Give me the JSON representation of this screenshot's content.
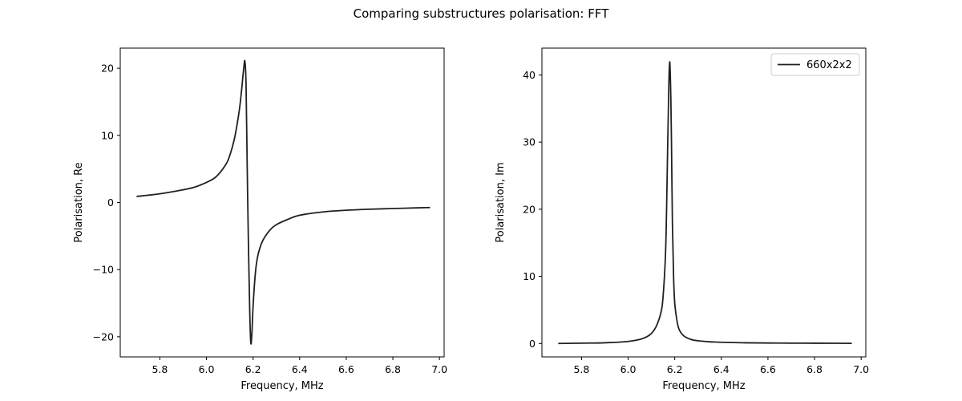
{
  "figure": {
    "title": "Comparing substructures polarisation: FFT"
  },
  "chart_data": [
    {
      "type": "line",
      "title": "",
      "xlabel": "Frequency, MHz",
      "ylabel": "Polarisation, Re",
      "xlim": [
        5.63,
        7.02
      ],
      "ylim": [
        -23.0,
        23.0
      ],
      "xticks": [
        5.8,
        6.0,
        6.2,
        6.4,
        6.6,
        6.8,
        7.0
      ],
      "xtick_labels": [
        "5.8",
        "6.0",
        "6.2",
        "6.4",
        "6.6",
        "6.8",
        "7.0"
      ],
      "yticks": [
        -20,
        -10,
        0,
        10,
        20
      ],
      "ytick_labels": [
        "−20",
        "−10",
        "0",
        "10",
        "20"
      ],
      "grid": false,
      "legend": null,
      "series": [
        {
          "color": "#231f20",
          "x": [
            5.7,
            5.8,
            5.9,
            5.95,
            6.0,
            6.04,
            6.08,
            6.1,
            6.12,
            6.14,
            6.15,
            6.16,
            6.165,
            6.17,
            6.175,
            6.18,
            6.185,
            6.19,
            6.195,
            6.2,
            6.21,
            6.22,
            6.24,
            6.27,
            6.3,
            6.35,
            6.4,
            6.5,
            6.6,
            6.7,
            6.8,
            6.9,
            6.96
          ],
          "y": [
            0.9,
            1.3,
            1.9,
            2.3,
            3.0,
            3.8,
            5.5,
            7.0,
            9.5,
            13.5,
            16.5,
            20.0,
            21.0,
            17.5,
            5.0,
            -6.0,
            -15.0,
            -20.8,
            -19.5,
            -15.5,
            -10.5,
            -8.0,
            -5.8,
            -4.2,
            -3.3,
            -2.5,
            -1.9,
            -1.4,
            -1.15,
            -1.0,
            -0.9,
            -0.8,
            -0.75
          ]
        }
      ]
    },
    {
      "type": "line",
      "title": "",
      "xlabel": "Frequency, MHz",
      "ylabel": "Polarisation, Im",
      "xlim": [
        5.63,
        7.02
      ],
      "ylim": [
        -2.0,
        44.0
      ],
      "xticks": [
        5.8,
        6.0,
        6.2,
        6.4,
        6.6,
        6.8,
        7.0
      ],
      "xtick_labels": [
        "5.8",
        "6.0",
        "6.2",
        "6.4",
        "6.6",
        "6.8",
        "7.0"
      ],
      "yticks": [
        0,
        10,
        20,
        30,
        40
      ],
      "ytick_labels": [
        "0",
        "10",
        "20",
        "30",
        "40"
      ],
      "grid": false,
      "legend": "top-right",
      "series": [
        {
          "name": "660x2x2",
          "color": "#231f20",
          "x": [
            5.7,
            5.8,
            5.9,
            6.0,
            6.05,
            6.08,
            6.1,
            6.12,
            6.14,
            6.15,
            6.16,
            6.165,
            6.17,
            6.175,
            6.178,
            6.18,
            6.183,
            6.186,
            6.19,
            6.195,
            6.2,
            6.21,
            6.22,
            6.24,
            6.27,
            6.3,
            6.35,
            6.4,
            6.5,
            6.6,
            6.7,
            6.8,
            6.9,
            6.96
          ],
          "y": [
            0.0,
            0.05,
            0.1,
            0.3,
            0.6,
            1.0,
            1.5,
            2.5,
            4.5,
            7.0,
            13.0,
            20.0,
            30.0,
            39.0,
            41.8,
            41.0,
            37.0,
            30.0,
            18.0,
            10.0,
            6.0,
            3.3,
            2.0,
            1.1,
            0.6,
            0.4,
            0.25,
            0.18,
            0.1,
            0.07,
            0.05,
            0.04,
            0.03,
            0.02
          ]
        }
      ]
    }
  ]
}
